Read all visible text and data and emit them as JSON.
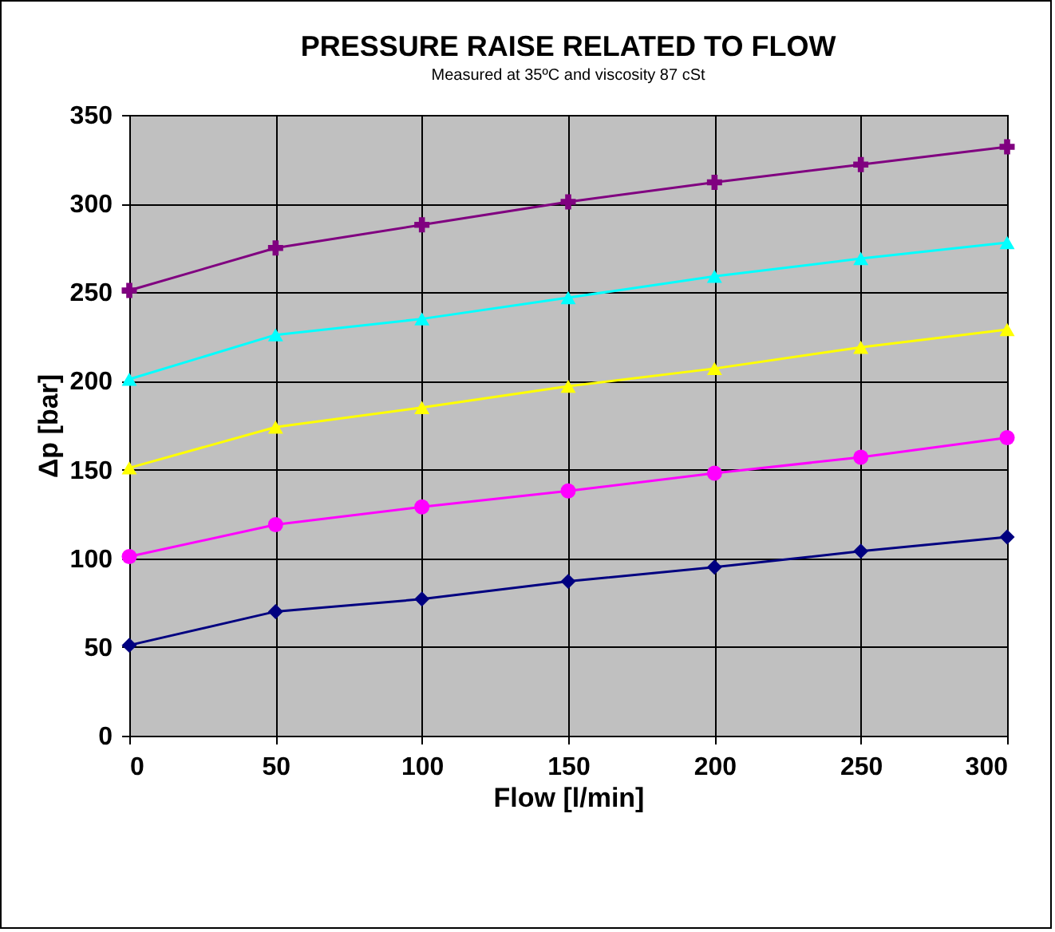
{
  "chart_data": {
    "type": "line",
    "title": "PRESSURE RAISE RELATED TO FLOW",
    "subtitle": "Measured at 35ºC and viscosity 87 cSt",
    "xlabel": "Flow [l/min]",
    "ylabel": "Δp [bar]",
    "x": [
      0,
      50,
      100,
      150,
      200,
      250,
      300
    ],
    "series": [
      {
        "color": "#000080",
        "marker": "diamond",
        "values": [
          51,
          70,
          77,
          87,
          95,
          104,
          112
        ]
      },
      {
        "color": "#ff00ff",
        "marker": "circle",
        "values": [
          101,
          119,
          129,
          138,
          148,
          157,
          168
        ]
      },
      {
        "color": "#ffff00",
        "marker": "triangle",
        "values": [
          151,
          174,
          185,
          197,
          207,
          219,
          229
        ]
      },
      {
        "color": "#00ffff",
        "marker": "triangle",
        "values": [
          201,
          226,
          235,
          247,
          259,
          269,
          278
        ]
      },
      {
        "color": "#800080",
        "marker": "cross",
        "values": [
          251,
          275,
          288,
          301,
          312,
          322,
          332
        ]
      }
    ],
    "xlim": [
      0,
      300
    ],
    "xticks": [
      0,
      50,
      100,
      150,
      200,
      250,
      300
    ],
    "ylim": [
      0,
      350
    ],
    "yticks": [
      0,
      50,
      100,
      150,
      200,
      250,
      300,
      350
    ],
    "grid": true
  }
}
